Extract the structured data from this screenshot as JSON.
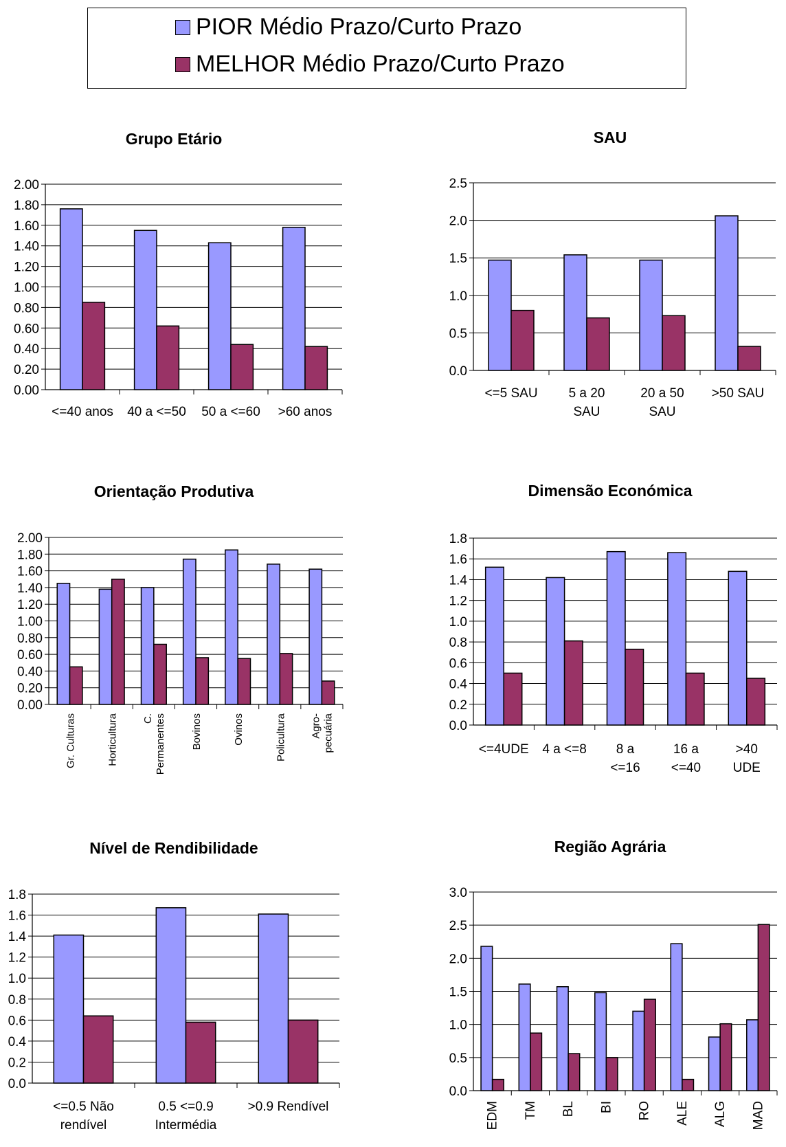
{
  "legend": {
    "items": [
      {
        "label": "PIOR Médio Prazo/Curto Prazo",
        "color": "#9999ff"
      },
      {
        "label": "MELHOR Médio Prazo/Curto Prazo",
        "color": "#993366"
      }
    ]
  },
  "chart_data": [
    {
      "type": "bar",
      "title": "Grupo Etário",
      "categories": [
        "<=40 anos",
        "40 a <=50",
        "50 a <=60",
        ">60 anos"
      ],
      "series": [
        {
          "name": "PIOR Médio Prazo/Curto Prazo",
          "values": [
            1.76,
            1.55,
            1.43,
            1.58
          ]
        },
        {
          "name": "MELHOR Médio Prazo/Curto Prazo",
          "values": [
            0.85,
            0.62,
            0.44,
            0.42
          ]
        }
      ],
      "ylim": [
        0,
        2.0
      ],
      "yticks": [
        "0.00",
        "0.20",
        "0.40",
        "0.60",
        "0.80",
        "1.00",
        "1.20",
        "1.40",
        "1.60",
        "1.80",
        "2.00"
      ],
      "grid": true
    },
    {
      "type": "bar",
      "title": "SAU",
      "categories": [
        "<=5 SAU",
        "5 a 20 SAU",
        "20 a 50 SAU",
        ">50 SAU"
      ],
      "series": [
        {
          "name": "PIOR Médio Prazo/Curto Prazo",
          "values": [
            1.47,
            1.54,
            1.47,
            2.06
          ]
        },
        {
          "name": "MELHOR Médio Prazo/Curto Prazo",
          "values": [
            0.8,
            0.7,
            0.73,
            0.32
          ]
        }
      ],
      "ylim": [
        0,
        2.5
      ],
      "yticks": [
        "0.0",
        "0.5",
        "1.0",
        "1.5",
        "2.0",
        "2.5"
      ],
      "grid": true
    },
    {
      "type": "bar",
      "title": "Orientação Produtiva",
      "categories": [
        "Gr. Culturas",
        "Horticultura",
        "C. Permanentes",
        "Bovinos",
        "Ovinos",
        "Policultura",
        "Agro-pecuária"
      ],
      "series": [
        {
          "name": "PIOR Médio Prazo/Curto Prazo",
          "values": [
            1.45,
            1.38,
            1.4,
            1.74,
            1.85,
            1.68,
            1.62
          ]
        },
        {
          "name": "MELHOR Médio Prazo/Curto Prazo",
          "values": [
            0.45,
            1.5,
            0.72,
            0.56,
            0.55,
            0.61,
            0.28
          ]
        }
      ],
      "ylim": [
        0,
        2.0
      ],
      "yticks": [
        "0.00",
        "0.20",
        "0.40",
        "0.60",
        "0.80",
        "1.00",
        "1.20",
        "1.40",
        "1.60",
        "1.80",
        "2.00"
      ],
      "grid": true
    },
    {
      "type": "bar",
      "title": "Dimensão Económica",
      "categories": [
        "<=4UDE",
        "4 a <=8",
        "8 a <=16",
        "16 a <=40",
        ">40 UDE"
      ],
      "series": [
        {
          "name": "PIOR Médio Prazo/Curto Prazo",
          "values": [
            1.52,
            1.42,
            1.67,
            1.66,
            1.48
          ]
        },
        {
          "name": "MELHOR Médio Prazo/Curto Prazo",
          "values": [
            0.5,
            0.81,
            0.73,
            0.5,
            0.45
          ]
        }
      ],
      "ylim": [
        0,
        1.8
      ],
      "yticks": [
        "0.0",
        "0.2",
        "0.4",
        "0.6",
        "0.8",
        "1.0",
        "1.2",
        "1.4",
        "1.6",
        "1.8"
      ],
      "grid": true
    },
    {
      "type": "bar",
      "title": "Nível de Rendibilidade",
      "categories": [
        "<=0.5 Não rendível",
        "0.5 <=0.9 Intermédia",
        ">0.9 Rendível"
      ],
      "series": [
        {
          "name": "PIOR Médio Prazo/Curto Prazo",
          "values": [
            1.41,
            1.67,
            1.61
          ]
        },
        {
          "name": "MELHOR Médio Prazo/Curto Prazo",
          "values": [
            0.64,
            0.58,
            0.6
          ]
        }
      ],
      "ylim": [
        0,
        1.8
      ],
      "yticks": [
        "0.0",
        "0.2",
        "0.4",
        "0.6",
        "0.8",
        "1.0",
        "1.2",
        "1.4",
        "1.6",
        "1.8"
      ],
      "grid": true
    },
    {
      "type": "bar",
      "title": "Região Agrária",
      "categories": [
        "EDM",
        "TM",
        "BL",
        "BI",
        "RO",
        "ALE",
        "ALG",
        "MAD"
      ],
      "series": [
        {
          "name": "PIOR Médio Prazo/Curto Prazo",
          "values": [
            2.18,
            1.61,
            1.57,
            1.48,
            1.2,
            2.22,
            0.81,
            1.07
          ]
        },
        {
          "name": "MELHOR Médio Prazo/Curto Prazo",
          "values": [
            0.17,
            0.87,
            0.56,
            0.5,
            1.38,
            0.17,
            1.01,
            2.51
          ]
        }
      ],
      "ylim": [
        0,
        3.0
      ],
      "yticks": [
        "0.0",
        "0.5",
        "1.0",
        "1.5",
        "2.0",
        "2.5",
        "3.0"
      ],
      "grid": true
    }
  ]
}
